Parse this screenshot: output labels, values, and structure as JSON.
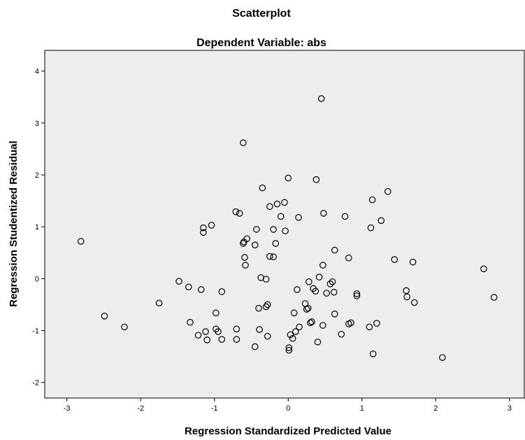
{
  "chart_data": {
    "type": "scatter",
    "title": "Scatterplot",
    "subtitle": "Dependent Variable: abs",
    "xlabel": "Regression Standardized Predicted Value",
    "ylabel": "Regression Studentized Residual",
    "xlim": [
      -3.3,
      3.2
    ],
    "ylim": [
      -2.3,
      4.4
    ],
    "xticks": [
      "-3",
      "-2",
      "-1",
      "0",
      "1",
      "2",
      "3"
    ],
    "yticks": [
      "-2",
      "-1",
      "0",
      "1",
      "2",
      "3",
      "4"
    ],
    "grid": false,
    "legend": "none",
    "colors": {
      "plot_bg": "#ededed",
      "marker": "#000000"
    },
    "points": [
      [
        -2.81,
        0.72
      ],
      [
        -2.49,
        -0.72
      ],
      [
        -2.22,
        -0.93
      ],
      [
        -1.75,
        -0.47
      ],
      [
        -1.48,
        -0.05
      ],
      [
        -1.35,
        -0.16
      ],
      [
        -1.33,
        -0.84
      ],
      [
        -1.22,
        -1.09
      ],
      [
        -1.18,
        -0.21
      ],
      [
        -1.15,
        0.98
      ],
      [
        -1.15,
        0.89
      ],
      [
        -1.12,
        -1.02
      ],
      [
        -1.1,
        -1.18
      ],
      [
        -1.04,
        1.03
      ],
      [
        -0.98,
        -0.66
      ],
      [
        -0.98,
        -0.97
      ],
      [
        -0.95,
        -1.02
      ],
      [
        -0.9,
        -1.17
      ],
      [
        -0.9,
        -0.25
      ],
      [
        -0.71,
        1.29
      ],
      [
        -0.7,
        -0.97
      ],
      [
        -0.7,
        -1.17
      ],
      [
        -0.66,
        1.26
      ],
      [
        -0.61,
        2.62
      ],
      [
        -0.61,
        0.68
      ],
      [
        -0.6,
        0.71
      ],
      [
        -0.59,
        0.41
      ],
      [
        -0.58,
        0.26
      ],
      [
        -0.56,
        0.77
      ],
      [
        -0.45,
        0.65
      ],
      [
        -0.45,
        -1.31
      ],
      [
        -0.43,
        0.95
      ],
      [
        -0.4,
        -0.57
      ],
      [
        -0.39,
        -0.98
      ],
      [
        -0.37,
        0.02
      ],
      [
        -0.35,
        1.75
      ],
      [
        -0.3,
        -0.54
      ],
      [
        -0.3,
        -0.01
      ],
      [
        -0.28,
        -0.5
      ],
      [
        -0.28,
        -1.11
      ],
      [
        -0.25,
        1.39
      ],
      [
        -0.25,
        0.43
      ],
      [
        -0.2,
        0.42
      ],
      [
        -0.2,
        0.95
      ],
      [
        -0.17,
        0.68
      ],
      [
        -0.15,
        1.44
      ],
      [
        -0.1,
        1.2
      ],
      [
        -0.05,
        1.47
      ],
      [
        -0.04,
        0.92
      ],
      [
        0.0,
        1.94
      ],
      [
        0.01,
        -1.33
      ],
      [
        0.01,
        -1.38
      ],
      [
        0.03,
        -1.08
      ],
      [
        0.06,
        -1.15
      ],
      [
        0.08,
        -0.66
      ],
      [
        0.1,
        -1.02
      ],
      [
        0.12,
        -0.21
      ],
      [
        0.14,
        1.18
      ],
      [
        0.15,
        -0.93
      ],
      [
        0.23,
        -0.48
      ],
      [
        0.25,
        -0.59
      ],
      [
        0.27,
        -0.57
      ],
      [
        0.28,
        -0.06
      ],
      [
        0.3,
        -0.85
      ],
      [
        0.32,
        -0.83
      ],
      [
        0.34,
        -0.19
      ],
      [
        0.37,
        -0.24
      ],
      [
        0.38,
        1.91
      ],
      [
        0.4,
        -1.22
      ],
      [
        0.42,
        0.03
      ],
      [
        0.45,
        3.47
      ],
      [
        0.47,
        0.26
      ],
      [
        0.47,
        -0.9
      ],
      [
        0.48,
        1.26
      ],
      [
        0.52,
        -0.28
      ],
      [
        0.57,
        -0.1
      ],
      [
        0.6,
        -0.06
      ],
      [
        0.62,
        -0.26
      ],
      [
        0.63,
        -0.68
      ],
      [
        0.63,
        0.55
      ],
      [
        0.72,
        -1.07
      ],
      [
        0.77,
        1.2
      ],
      [
        0.82,
        -0.87
      ],
      [
        0.82,
        0.4
      ],
      [
        0.85,
        -0.85
      ],
      [
        0.93,
        -0.33
      ],
      [
        0.93,
        -0.29
      ],
      [
        1.1,
        -0.93
      ],
      [
        1.12,
        0.98
      ],
      [
        1.14,
        1.52
      ],
      [
        1.15,
        -1.45
      ],
      [
        1.2,
        -0.86
      ],
      [
        1.26,
        1.12
      ],
      [
        1.35,
        1.68
      ],
      [
        1.44,
        0.37
      ],
      [
        1.6,
        -0.23
      ],
      [
        1.61,
        -0.35
      ],
      [
        1.69,
        0.32
      ],
      [
        1.71,
        -0.46
      ],
      [
        2.09,
        -1.52
      ],
      [
        2.65,
        0.19
      ],
      [
        2.79,
        -0.36
      ]
    ]
  }
}
